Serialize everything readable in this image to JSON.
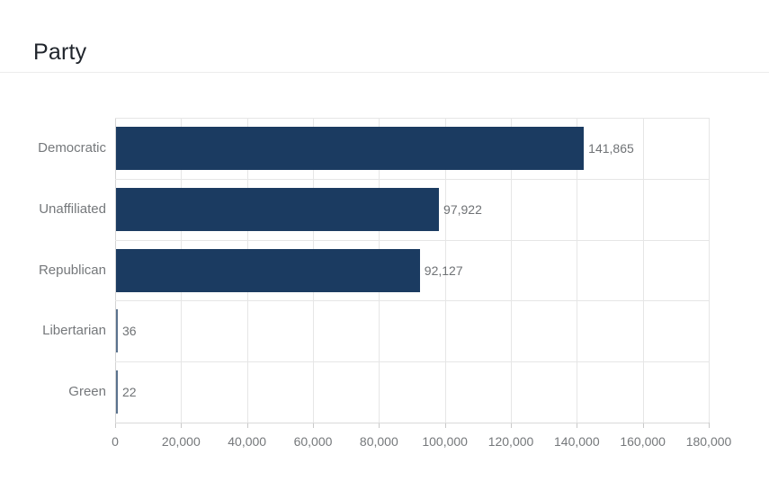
{
  "page": {
    "title": "Party"
  },
  "chart_data": {
    "type": "bar",
    "orientation": "horizontal",
    "title": "Party",
    "categories": [
      "Democratic",
      "Unaffiliated",
      "Republican",
      "Libertarian",
      "Green"
    ],
    "values": [
      141865,
      97922,
      92127,
      36,
      22
    ],
    "value_labels": [
      "141,865",
      "97,922",
      "92,127",
      "36",
      "22"
    ],
    "xlabel": "",
    "ylabel": "",
    "xlim": [
      0,
      180000
    ],
    "x_ticks": [
      0,
      20000,
      40000,
      60000,
      80000,
      100000,
      120000,
      140000,
      160000,
      180000
    ],
    "x_tick_labels": [
      "0",
      "20,000",
      "40,000",
      "60,000",
      "80,000",
      "100,000",
      "120,000",
      "140,000",
      "160,000",
      "180,000"
    ],
    "grid": true,
    "legend": "none",
    "bar_color": "#1b3b61",
    "label_color": "#75787b",
    "gridline_color": "#e6e6e6"
  }
}
